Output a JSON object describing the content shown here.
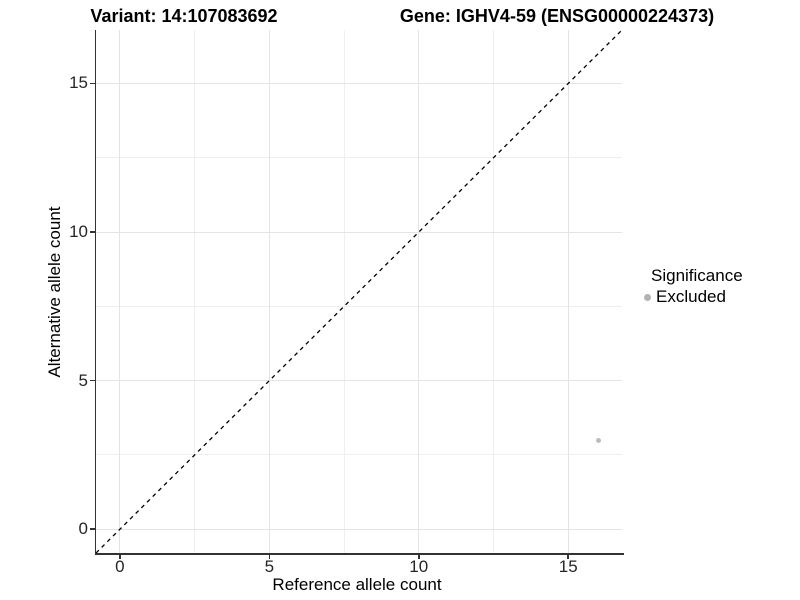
{
  "chart_data": {
    "type": "scatter",
    "title_variant": "Variant: 14:107083692",
    "title_gene": "Gene: IGHV4-59 (ENSG00000224373)",
    "xlabel": "Reference allele count",
    "ylabel": "Alternative allele count",
    "xlim": [
      -0.8,
      16.8
    ],
    "ylim": [
      -0.8,
      16.8
    ],
    "x_major_ticks": [
      0,
      5,
      10,
      15
    ],
    "y_major_ticks": [
      0,
      5,
      10,
      15
    ],
    "x_minor_ticks": [
      2.5,
      7.5,
      12.5
    ],
    "y_minor_ticks": [
      2.5,
      7.5,
      12.5
    ],
    "grid": "on",
    "legend_position": "right",
    "identity_line": {
      "slope": 1,
      "intercept": 0,
      "style": "dashed",
      "color": "#000000"
    },
    "series": [
      {
        "name": "Excluded",
        "color": "#bdbdbd",
        "points": [
          {
            "x": 16,
            "y": 3
          }
        ]
      }
    ],
    "legend": {
      "title": "Significance",
      "items": [
        {
          "label": "Excluded",
          "color": "#b3b3b3"
        }
      ]
    },
    "colors": {
      "axis_line": "#333333",
      "tick": "#333333",
      "grid_major": "#e4e4e4",
      "grid_minor": "#efefef",
      "tick_label": "#262626",
      "background": "#ffffff"
    }
  }
}
